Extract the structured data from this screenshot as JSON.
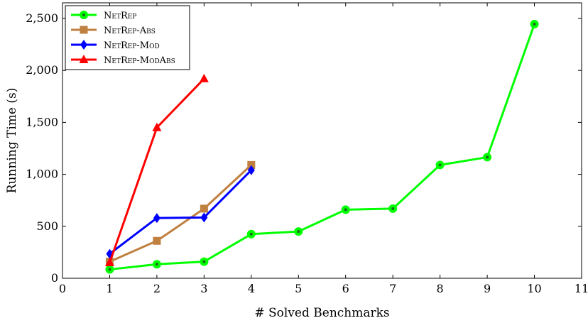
{
  "chart_data": {
    "type": "line",
    "xlabel": "# Solved Benchmarks",
    "ylabel": "Running Time (s)",
    "xlim": [
      0,
      11
    ],
    "ylim": [
      0,
      2650
    ],
    "xticks": [
      "0",
      "1",
      "2",
      "3",
      "4",
      "5",
      "6",
      "7",
      "8",
      "9",
      "10",
      "11"
    ],
    "yticks": [
      {
        "value": 0,
        "label": "0"
      },
      {
        "value": 500,
        "label": "500"
      },
      {
        "value": 1000,
        "label": "1,000"
      },
      {
        "value": 1500,
        "label": "1,500"
      },
      {
        "value": 2000,
        "label": "2,000"
      },
      {
        "value": 2500,
        "label": "2,500"
      }
    ],
    "grid": false,
    "legend_position": "top-left",
    "series": [
      {
        "name": "NetRep",
        "color": "#00ff00",
        "marker": "circle",
        "x": [
          1,
          2,
          3,
          4,
          5,
          6,
          7,
          8,
          9,
          10
        ],
        "y": [
          85,
          135,
          160,
          425,
          450,
          660,
          670,
          1090,
          1165,
          2445
        ]
      },
      {
        "name": "NetRep-Abs",
        "color": "#bf8040",
        "marker": "square",
        "x": [
          1,
          2,
          3,
          4
        ],
        "y": [
          160,
          360,
          670,
          1090
        ]
      },
      {
        "name": "NetRep-Mod",
        "color": "#0000ff",
        "marker": "diamond",
        "x": [
          1,
          2,
          3,
          4
        ],
        "y": [
          235,
          580,
          585,
          1040
        ]
      },
      {
        "name": "NetRep-ModAbs",
        "color": "#ff0000",
        "marker": "triangle",
        "x": [
          1,
          2,
          3
        ],
        "y": [
          150,
          1450,
          1920
        ]
      }
    ]
  }
}
